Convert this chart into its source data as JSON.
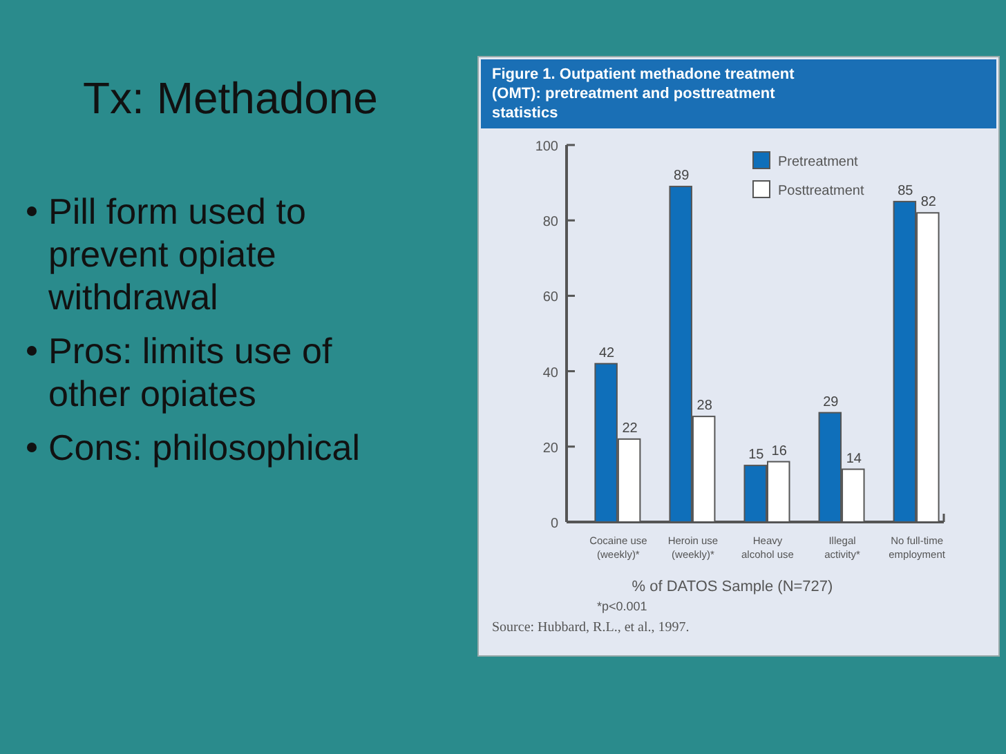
{
  "chart_data": {
    "type": "bar",
    "title": "Tx: Methadone",
    "subtitle": "Figure 1.  Outpatient methadone treatment (OMT): pretreatment and posttreatment statistics",
    "categories": [
      "Cocaine use (weekly)*",
      "Heroin use (weekly)*",
      "Heavy alcohol use",
      "Illegal activity*",
      "No full-time employment"
    ],
    "series": [
      {
        "name": "Pretreatment",
        "color": "#0f6fba",
        "values": [
          42,
          89,
          15,
          29,
          85
        ]
      },
      {
        "name": "Posttreatment",
        "color": "#ffffff",
        "values": [
          22,
          28,
          16,
          14,
          82
        ]
      }
    ],
    "xlabel": "% of DATOS Sample (N=727)",
    "ylim": [
      0,
      100
    ],
    "yticks": [
      0,
      20,
      40,
      60,
      80,
      100
    ],
    "data_labels": true,
    "legend": "top right",
    "grid": false,
    "annotations": [
      "Pill form used to prevent opiate withdrawal",
      "Pros: limits use of other opiates",
      "Cons: philosophical",
      "*p<0.001",
      "Source:  Hubbard, R.L., et al., 1997."
    ]
  }
}
